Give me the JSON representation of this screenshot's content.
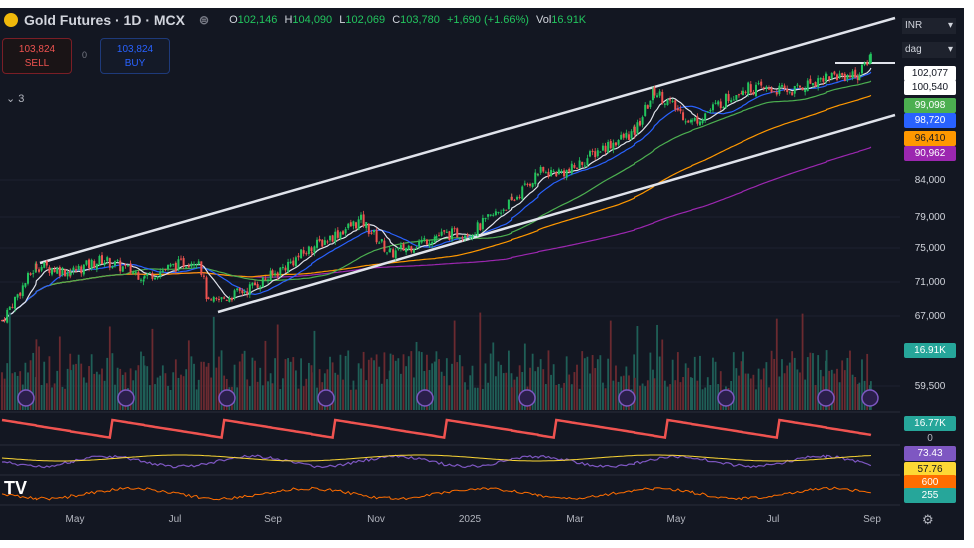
{
  "header": {
    "symbol_title": "Gold Futures · 1D · MCX",
    "open_label": "O",
    "open": "102,146",
    "high_label": "H",
    "high": "104,090",
    "low_label": "L",
    "low": "102,069",
    "close_label": "C",
    "close": "103,780",
    "change": "+1,690 (+1.66%)",
    "vol_label": "Vol",
    "volume": "16.91K"
  },
  "trade": {
    "sell_price": "103,824",
    "sell_label": "SELL",
    "buy_price": "103,824",
    "buy_label": "BUY",
    "spread": "0"
  },
  "indicators_toggle": "3",
  "axis_selectors": {
    "currency": "INR",
    "unit": "dag"
  },
  "price_tags": [
    {
      "value": "102,077",
      "bg": "#ffffff",
      "fg": "#131722"
    },
    {
      "value": "100,540",
      "bg": "#ffffff",
      "fg": "#131722"
    },
    {
      "value": "99,098",
      "bg": "#4caf50",
      "fg": "#ffffff"
    },
    {
      "value": "98,720",
      "bg": "#2962ff",
      "fg": "#ffffff"
    },
    {
      "value": "96,410",
      "bg": "#ff9800",
      "fg": "#131722"
    },
    {
      "value": "90,962",
      "bg": "#9c27b0",
      "fg": "#ffffff"
    }
  ],
  "indicator_tags": [
    {
      "value": "16.91K",
      "bg": "#26a69a",
      "fg": "#ffffff"
    },
    {
      "value": "16.77K",
      "bg": "#26a69a",
      "fg": "#ffffff"
    },
    {
      "value": "0",
      "bg": "transparent",
      "fg": "#b2b5be"
    },
    {
      "value": "73.43",
      "bg": "#7e57c2",
      "fg": "#ffffff"
    },
    {
      "value": "57.76",
      "bg": "#fdd835",
      "fg": "#131722"
    },
    {
      "value": "600",
      "bg": "#ff6d00",
      "fg": "#ffffff"
    },
    {
      "value": "255",
      "bg": "#26a69a",
      "fg": "#ffffff"
    }
  ],
  "chart_data": {
    "type": "candlestick",
    "y_scale": "log",
    "y_ticks": [
      "84,000",
      "79,000",
      "75,000",
      "71,000",
      "67,000",
      "59,500"
    ],
    "x_ticks": [
      "May",
      "Jul",
      "Sep",
      "Nov",
      "2025",
      "Mar",
      "May",
      "Jul",
      "Sep"
    ],
    "grid": true,
    "colors": {
      "up": "#22c55e",
      "down": "#ef5350",
      "ma_fast": "#e0e3eb",
      "ma_mid": "#2962ff",
      "ma_green": "#4caf50",
      "ma_orange": "#ff9800",
      "ma_slow": "#9c27b0",
      "channel": "#e0e3eb"
    },
    "close_path": [
      {
        "date": "2024-03-20",
        "close": 66400
      },
      {
        "date": "2024-04-10",
        "close": 72800
      },
      {
        "date": "2024-05-01",
        "close": 72000
      },
      {
        "date": "2024-05-20",
        "close": 73500
      },
      {
        "date": "2024-06-15",
        "close": 71500
      },
      {
        "date": "2024-07-18",
        "close": 73700
      },
      {
        "date": "2024-07-24",
        "close": 68200
      },
      {
        "date": "2024-08-15",
        "close": 69800
      },
      {
        "date": "2024-09-01",
        "close": 71600
      },
      {
        "date": "2024-09-25",
        "close": 75000
      },
      {
        "date": "2024-10-25",
        "close": 78500
      },
      {
        "date": "2024-11-12",
        "close": 74200
      },
      {
        "date": "2024-12-10",
        "close": 76500
      },
      {
        "date": "2025-01-01",
        "close": 77000
      },
      {
        "date": "2025-01-25",
        "close": 81000
      },
      {
        "date": "2025-02-10",
        "close": 85000
      },
      {
        "date": "2025-03-01",
        "close": 85200
      },
      {
        "date": "2025-03-20",
        "close": 88500
      },
      {
        "date": "2025-04-10",
        "close": 91000
      },
      {
        "date": "2025-04-22",
        "close": 97500
      },
      {
        "date": "2025-05-15",
        "close": 92500
      },
      {
        "date": "2025-06-15",
        "close": 98000
      },
      {
        "date": "2025-07-15",
        "close": 97500
      },
      {
        "date": "2025-08-05",
        "close": 100000
      },
      {
        "date": "2025-08-25",
        "close": 100200
      },
      {
        "date": "2025-09-01",
        "close": 103780
      }
    ],
    "last_bar": {
      "open": 102146,
      "high": 104090,
      "low": 102069,
      "close": 103780,
      "volume": "16.91K"
    }
  }
}
